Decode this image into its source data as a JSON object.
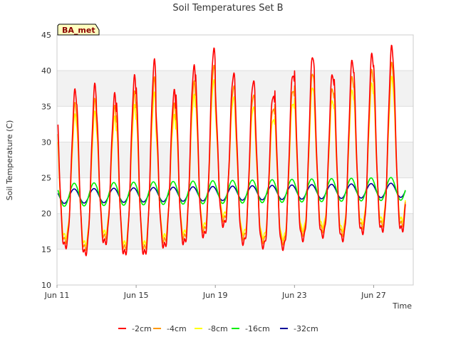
{
  "chart_data": {
    "type": "line",
    "title": "Soil Temperatures Set B",
    "xlabel": "Time",
    "ylabel": "Soil Temperature (C)",
    "badge": "BA_met",
    "ylim": [
      10,
      45
    ],
    "yticks": [
      10,
      15,
      20,
      25,
      30,
      35,
      40,
      45
    ],
    "xlim": [
      0,
      18
    ],
    "xticks": [
      {
        "value": 0,
        "label": "Jun 11"
      },
      {
        "value": 4,
        "label": "Jun 15"
      },
      {
        "value": 8,
        "label": "Jun 19"
      },
      {
        "value": 12,
        "label": "Jun 23"
      },
      {
        "value": 16,
        "label": "Jun 27"
      }
    ],
    "grid": "horizontal bands",
    "legend_position": "bottom",
    "daily_peaks_2cm": [
      37.2,
      37.9,
      36.5,
      39.0,
      41.2,
      37.0,
      40.5,
      43.0,
      39.6,
      38.7,
      36.7,
      39.7,
      42.2,
      39.6,
      41.5,
      42.3,
      43.3
    ],
    "daily_mins_2cm": [
      15.5,
      14.5,
      16.0,
      14.5,
      14.5,
      15.5,
      16.0,
      17.0,
      18.5,
      16.0,
      15.5,
      15.3,
      16.5,
      17.0,
      16.5,
      17.5,
      17.8
    ],
    "series": [
      {
        "name": "-2cm",
        "color": "#ff0000",
        "peak_scale": 1.0,
        "mean": 0,
        "amp": 0
      },
      {
        "name": "-4cm",
        "color": "#ff9900",
        "peak_scale": 0.88,
        "mean": 0,
        "amp": 0
      },
      {
        "name": "-8cm",
        "color": "#ffff00",
        "peak_scale": 0.78,
        "mean": 0,
        "amp": 0
      },
      {
        "name": "-16cm",
        "color": "#00ee00",
        "peak_scale": 0,
        "mean": 22.6,
        "amp": 1.6
      },
      {
        "name": "-32cm",
        "color": "#000099",
        "peak_scale": 0,
        "mean": 22.4,
        "amp": 1.0
      }
    ]
  }
}
